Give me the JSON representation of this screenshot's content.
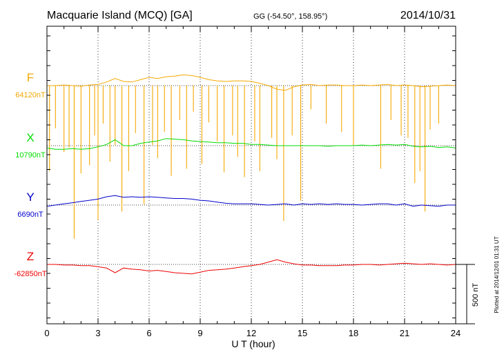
{
  "chart_data": {
    "type": "line",
    "title": "Macquarie Island (MCQ)  [GA]",
    "coords": "GG (-54.50°, 158.95°)",
    "date": "2014/10/31",
    "xlabel": "U T (hour)",
    "xlim": [
      0,
      24
    ],
    "xticks": [
      "0",
      "3",
      "6",
      "9",
      "12",
      "15",
      "18",
      "21",
      "24"
    ],
    "grid": true,
    "scale_bar_label": "500 nT",
    "scale_bar_nT": 500,
    "footnote": "Plotted at 2014/12/01 01:31  UT",
    "series": [
      {
        "name": "F",
        "baseline_label": "64120nT",
        "baseline_nT": 64120,
        "color": "#f5a800",
        "x": [
          0,
          0.5,
          1,
          1.5,
          2,
          2.5,
          3,
          3.5,
          4,
          4.5,
          5,
          5.5,
          6,
          6.5,
          7,
          7.5,
          8,
          8.5,
          9,
          9.5,
          10,
          10.5,
          11,
          11.5,
          12,
          12.5,
          13,
          13.5,
          14,
          14.5,
          15,
          15.5,
          16,
          16.5,
          17,
          17.5,
          18,
          18.5,
          19,
          19.5,
          20,
          20.5,
          21,
          21.5,
          22,
          22.5,
          23,
          23.5,
          24
        ],
        "values": [
          64120,
          64120,
          64125,
          64120,
          64115,
          64125,
          64130,
          64150,
          64180,
          64155,
          64150,
          64170,
          64190,
          64180,
          64195,
          64200,
          64210,
          64205,
          64190,
          64170,
          64160,
          64155,
          64160,
          64160,
          64155,
          64140,
          64120,
          64090,
          64080,
          64110,
          64125,
          64130,
          64120,
          64125,
          64125,
          64120,
          64120,
          64125,
          64120,
          64125,
          64130,
          64120,
          64125,
          64120,
          64110,
          64115,
          64120,
          64125,
          64120
        ],
        "spikes": [
          {
            "x": 0.15,
            "min": 63400
          },
          {
            "x": 0.5,
            "min": 63760
          },
          {
            "x": 1.0,
            "min": 63560
          },
          {
            "x": 1.3,
            "min": 63600
          },
          {
            "x": 1.6,
            "min": 62830
          },
          {
            "x": 2.0,
            "min": 63380
          },
          {
            "x": 2.5,
            "min": 63450
          },
          {
            "x": 2.8,
            "min": 63700
          },
          {
            "x": 3.0,
            "min": 62990
          },
          {
            "x": 3.3,
            "min": 63800
          },
          {
            "x": 3.7,
            "min": 63480
          },
          {
            "x": 4.0,
            "min": 63620
          },
          {
            "x": 4.4,
            "min": 63060
          },
          {
            "x": 4.8,
            "min": 63400
          },
          {
            "x": 5.2,
            "min": 63720
          },
          {
            "x": 5.7,
            "min": 63120
          },
          {
            "x": 6.2,
            "min": 63620
          },
          {
            "x": 6.5,
            "min": 63510
          },
          {
            "x": 6.9,
            "min": 63730
          },
          {
            "x": 7.3,
            "min": 63360
          },
          {
            "x": 7.8,
            "min": 63830
          },
          {
            "x": 8.2,
            "min": 63420
          },
          {
            "x": 8.6,
            "min": 63900
          },
          {
            "x": 9.1,
            "min": 63460
          },
          {
            "x": 9.5,
            "min": 63810
          },
          {
            "x": 10.0,
            "min": 63650
          },
          {
            "x": 10.4,
            "min": 63390
          },
          {
            "x": 10.9,
            "min": 63700
          },
          {
            "x": 11.2,
            "min": 63520
          },
          {
            "x": 11.6,
            "min": 63350
          },
          {
            "x": 12.2,
            "min": 63650
          },
          {
            "x": 12.5,
            "min": 63400
          },
          {
            "x": 13.2,
            "min": 63680
          },
          {
            "x": 13.5,
            "min": 63500
          },
          {
            "x": 13.9,
            "min": 62980
          },
          {
            "x": 14.4,
            "min": 63700
          },
          {
            "x": 14.9,
            "min": 63150
          },
          {
            "x": 15.5,
            "min": 63920
          },
          {
            "x": 16.4,
            "min": 63800
          },
          {
            "x": 17.3,
            "min": 63730
          },
          {
            "x": 18.0,
            "min": 63620
          },
          {
            "x": 19.6,
            "min": 63420
          },
          {
            "x": 20.2,
            "min": 63830
          },
          {
            "x": 20.8,
            "min": 63700
          },
          {
            "x": 21.2,
            "min": 63680
          },
          {
            "x": 21.6,
            "min": 63300
          },
          {
            "x": 21.9,
            "min": 63400
          },
          {
            "x": 22.2,
            "min": 63060
          },
          {
            "x": 22.5,
            "min": 63750
          },
          {
            "x": 23.0,
            "min": 63800
          }
        ]
      },
      {
        "name": "X",
        "baseline_label": "10790nT",
        "baseline_nT": 10790,
        "color": "#00dd00",
        "x": [
          0,
          0.5,
          1,
          1.5,
          2,
          2.5,
          3,
          3.5,
          4,
          4.5,
          5,
          5.5,
          6,
          6.5,
          7,
          7.5,
          8,
          8.5,
          9,
          9.5,
          10,
          10.5,
          11,
          11.5,
          12,
          12.5,
          13,
          13.5,
          14,
          14.5,
          15,
          15.5,
          16,
          16.5,
          17,
          17.5,
          18,
          18.5,
          19,
          19.5,
          20,
          20.5,
          21,
          21.5,
          22,
          22.5,
          23,
          23.5,
          24
        ],
        "values": [
          10770,
          10760,
          10760,
          10765,
          10760,
          10765,
          10780,
          10800,
          10840,
          10790,
          10790,
          10810,
          10820,
          10830,
          10850,
          10845,
          10840,
          10830,
          10825,
          10820,
          10815,
          10815,
          10810,
          10810,
          10800,
          10800,
          10795,
          10790,
          10790,
          10790,
          10790,
          10790,
          10790,
          10785,
          10790,
          10790,
          10790,
          10795,
          10790,
          10795,
          10800,
          10795,
          10800,
          10785,
          10780,
          10785,
          10775,
          10780,
          10770
        ]
      },
      {
        "name": "Y",
        "baseline_label": "6690nT",
        "baseline_nT": 6690,
        "color": "#0000cc",
        "x": [
          0,
          0.5,
          1,
          1.5,
          2,
          2.5,
          3,
          3.5,
          4,
          4.5,
          5,
          5.5,
          6,
          6.5,
          7,
          7.5,
          8,
          8.5,
          9,
          9.5,
          10,
          10.5,
          11,
          11.5,
          12,
          12.5,
          13,
          13.5,
          14,
          14.5,
          15,
          15.5,
          16,
          16.5,
          17,
          17.5,
          18,
          18.5,
          19,
          19.5,
          20,
          20.5,
          21,
          21.5,
          22,
          22.5,
          23,
          23.5,
          24
        ],
        "values": [
          6680,
          6690,
          6700,
          6710,
          6720,
          6730,
          6740,
          6760,
          6770,
          6755,
          6760,
          6755,
          6760,
          6755,
          6750,
          6745,
          6745,
          6740,
          6730,
          6725,
          6715,
          6705,
          6700,
          6700,
          6700,
          6695,
          6690,
          6695,
          6700,
          6690,
          6700,
          6695,
          6700,
          6695,
          6700,
          6695,
          6695,
          6690,
          6695,
          6700,
          6700,
          6690,
          6700,
          6680,
          6690,
          6685,
          6680,
          6690,
          6690
        ]
      },
      {
        "name": "Z",
        "baseline_label": "-62850nT",
        "baseline_nT": -62850,
        "color": "#ee0000",
        "x": [
          0,
          0.5,
          1,
          1.5,
          2,
          2.5,
          3,
          3.5,
          4,
          4.5,
          5,
          5.5,
          6,
          6.5,
          7,
          7.5,
          8,
          8.5,
          9,
          9.5,
          10,
          10.5,
          11,
          11.5,
          12,
          12.5,
          13,
          13.5,
          14,
          14.5,
          15,
          15.5,
          16,
          16.5,
          17,
          17.5,
          18,
          18.5,
          19,
          19.5,
          20,
          20.5,
          21,
          21.5,
          22,
          22.5,
          23,
          23.5,
          24
        ],
        "values": [
          -62850,
          -62850,
          -62855,
          -62855,
          -62860,
          -62860,
          -62870,
          -62880,
          -62920,
          -62880,
          -62890,
          -62895,
          -62905,
          -62900,
          -62910,
          -62920,
          -62925,
          -62930,
          -62915,
          -62900,
          -62895,
          -62890,
          -62880,
          -62870,
          -62860,
          -62850,
          -62830,
          -62810,
          -62830,
          -62845,
          -62855,
          -62855,
          -62860,
          -62860,
          -62860,
          -62855,
          -62855,
          -62850,
          -62850,
          -62855,
          -62850,
          -62845,
          -62840,
          -62845,
          -62850,
          -62845,
          -62850,
          -62855,
          -62850
        ]
      }
    ]
  }
}
